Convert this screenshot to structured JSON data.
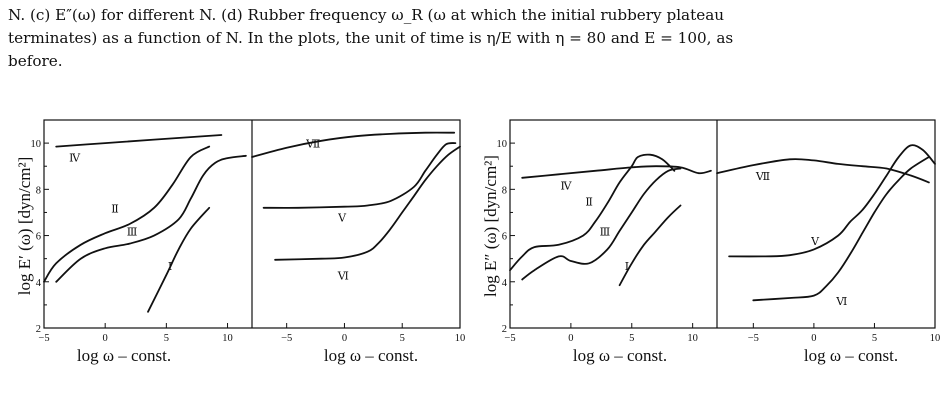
{
  "caption": {
    "line1": "N. (c) E″(ω) for different N. (d) Rubber frequency ω_R (ω at which the initial rubbery plateau",
    "line2": "terminates) as a function of N. In the plots, the unit of time is η/E with η = 80 and E = 100, as",
    "line3": "before."
  },
  "figure_left": {
    "ylabel": "log E′ (ω)   [dyn/cm²]",
    "xlabel": "log ω –  const.",
    "left_panel": {
      "x_ticks": [
        "−5",
        "0",
        "5",
        "10"
      ],
      "y_ticks": [
        "2",
        "4",
        "6",
        "8",
        "10"
      ]
    },
    "right_panel": {
      "x_ticks": [
        "−5",
        "0",
        "5",
        "10"
      ]
    },
    "curve_labels": [
      "Ⅳ",
      "Ⅱ",
      "Ⅲ",
      "Ⅰ",
      "Ⅶ",
      "Ⅴ",
      "Ⅵ"
    ]
  },
  "figure_right": {
    "ylabel": "log E″ (ω)   [dyn/cm²]",
    "xlabel": "log ω –  const.",
    "left_panel": {
      "x_ticks": [
        "−5",
        "0",
        "5",
        "10"
      ],
      "y_ticks": [
        "2",
        "4",
        "6",
        "8",
        "10"
      ]
    },
    "right_panel": {
      "x_ticks": [
        "−5",
        "0",
        "5",
        "10"
      ]
    },
    "curve_labels": [
      "Ⅳ",
      "Ⅱ",
      "Ⅲ",
      "Ⅰ",
      "Ⅶ",
      "Ⅴ",
      "Ⅵ"
    ]
  },
  "chart_data": [
    {
      "type": "line",
      "title": "",
      "xlabel": "log ω –  const.",
      "ylabel": "log E′ (ω)   [dyn/cm²]",
      "panel": "left",
      "xlim": [
        -5,
        12
      ],
      "ylim": [
        2,
        11
      ],
      "series": [
        {
          "name": "Ⅳ",
          "x": [
            -4,
            0,
            4,
            9.5
          ],
          "y": [
            9.85,
            10.0,
            10.15,
            10.35
          ]
        },
        {
          "name": "Ⅱ",
          "x": [
            -5,
            -4,
            -2,
            0,
            2,
            4,
            5.5,
            7,
            8.5
          ],
          "y": [
            4.0,
            4.8,
            5.6,
            6.1,
            6.5,
            7.2,
            8.2,
            9.4,
            9.85
          ]
        },
        {
          "name": "Ⅲ",
          "x": [
            -4,
            -2,
            0,
            2,
            4,
            6,
            7,
            8,
            9,
            10,
            11.5
          ],
          "y": [
            4.0,
            5.0,
            5.45,
            5.65,
            6.0,
            6.7,
            7.6,
            8.6,
            9.15,
            9.35,
            9.45
          ]
        },
        {
          "name": "Ⅰ",
          "x": [
            3.5,
            5,
            6,
            7,
            8.5
          ],
          "y": [
            2.7,
            4.3,
            5.4,
            6.3,
            7.2
          ]
        }
      ]
    },
    {
      "type": "line",
      "title": "",
      "xlabel": "log ω –  const.",
      "ylabel": "log E′ (ω)   [dyn/cm²]",
      "panel": "right",
      "xlim": [
        -8,
        10
      ],
      "ylim": [
        2,
        11
      ],
      "series": [
        {
          "name": "Ⅶ",
          "x": [
            -8,
            -5,
            -2,
            1,
            4,
            7,
            9.5
          ],
          "y": [
            9.4,
            9.8,
            10.1,
            10.3,
            10.4,
            10.45,
            10.45
          ]
        },
        {
          "name": "Ⅴ",
          "x": [
            -7,
            -4,
            0,
            2,
            4,
            6,
            7,
            8,
            8.8,
            9.6
          ],
          "y": [
            7.2,
            7.2,
            7.25,
            7.3,
            7.5,
            8.1,
            8.8,
            9.5,
            9.95,
            10.0
          ]
        },
        {
          "name": "Ⅵ",
          "x": [
            -6,
            -2,
            0,
            2,
            3,
            4,
            5,
            6,
            7,
            8,
            9,
            10
          ],
          "y": [
            4.95,
            5.0,
            5.05,
            5.3,
            5.7,
            6.3,
            7.0,
            7.7,
            8.4,
            9.0,
            9.5,
            9.85
          ]
        }
      ]
    },
    {
      "type": "line",
      "title": "",
      "xlabel": "log ω –  const.",
      "ylabel": "log E″ (ω)   [dyn/cm²]",
      "panel": "left",
      "xlim": [
        -5,
        12
      ],
      "ylim": [
        2,
        11
      ],
      "series": [
        {
          "name": "Ⅳ",
          "x": [
            -4,
            -1,
            2,
            5,
            7,
            9,
            10.5,
            11.5
          ],
          "y": [
            8.5,
            8.65,
            8.8,
            8.95,
            9.0,
            8.95,
            8.7,
            8.8
          ]
        },
        {
          "name": "Ⅱ",
          "x": [
            -5,
            -4,
            -3,
            -1,
            1,
            2,
            3,
            4,
            5,
            5.5,
            6.5,
            7.5,
            8.5
          ],
          "y": [
            4.5,
            5.1,
            5.5,
            5.6,
            6.0,
            6.6,
            7.4,
            8.3,
            9.0,
            9.4,
            9.5,
            9.3,
            8.8
          ]
        },
        {
          "name": "Ⅲ",
          "x": [
            -4,
            -3,
            -1,
            0,
            1.5,
            3,
            4,
            5,
            6,
            7,
            8,
            9
          ],
          "y": [
            4.1,
            4.5,
            5.1,
            4.9,
            4.8,
            5.4,
            6.2,
            7.0,
            7.8,
            8.4,
            8.8,
            8.9
          ]
        },
        {
          "name": "Ⅰ",
          "x": [
            4,
            5,
            6,
            7,
            8,
            9
          ],
          "y": [
            3.85,
            4.8,
            5.6,
            6.2,
            6.8,
            7.3
          ]
        }
      ]
    },
    {
      "type": "line",
      "title": "",
      "xlabel": "log ω –  const.",
      "ylabel": "log E″ (ω)   [dyn/cm²]",
      "panel": "right",
      "xlim": [
        -8,
        10
      ],
      "ylim": [
        2,
        11
      ],
      "series": [
        {
          "name": "Ⅶ",
          "x": [
            -8,
            -5,
            -2,
            0,
            2,
            4,
            6,
            8,
            9.5
          ],
          "y": [
            8.7,
            9.05,
            9.3,
            9.25,
            9.1,
            9.0,
            8.9,
            8.6,
            8.3
          ]
        },
        {
          "name": "Ⅴ",
          "x": [
            -7,
            -4,
            -2,
            0,
            2,
            3,
            4,
            5,
            6,
            7,
            8,
            9,
            10
          ],
          "y": [
            5.1,
            5.1,
            5.15,
            5.4,
            6.0,
            6.6,
            7.1,
            7.8,
            8.6,
            9.4,
            9.9,
            9.7,
            9.1
          ]
        },
        {
          "name": "Ⅵ",
          "x": [
            -5,
            -2,
            0,
            1,
            2,
            3,
            4,
            5,
            6,
            7,
            8,
            9.5
          ],
          "y": [
            3.2,
            3.3,
            3.4,
            3.8,
            4.4,
            5.2,
            6.1,
            7.0,
            7.8,
            8.4,
            8.9,
            9.4
          ]
        }
      ]
    }
  ]
}
